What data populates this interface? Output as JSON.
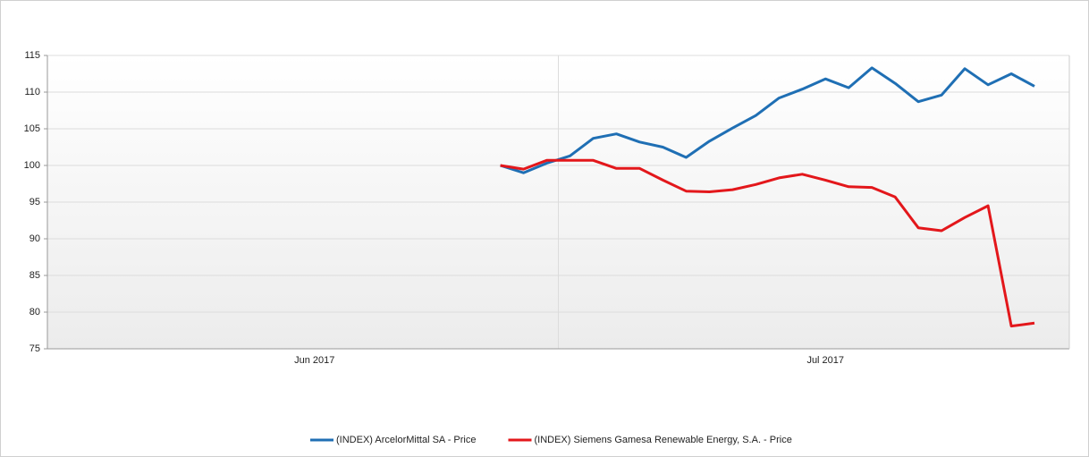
{
  "chart_data": {
    "type": "line",
    "x": [
      19.5,
      20.5,
      21.5,
      22.5,
      23.5,
      24.5,
      25.5,
      26.5,
      27.5,
      28.5,
      29.5,
      30.5,
      31.5,
      32.5,
      33.5,
      34.5,
      35.5,
      36.5,
      37.5,
      38.5,
      39.5,
      40.5,
      41.5,
      42.5
    ],
    "series": [
      {
        "name": "(INDEX) ArcelorMittal SA - Price",
        "color": "#1f6fb4",
        "values": [
          100,
          99.0,
          100.3,
          101.3,
          103.7,
          104.3,
          103.2,
          102.5,
          101.1,
          103.3,
          105.1,
          106.8,
          109.2,
          110.4,
          111.8,
          110.6,
          113.3,
          111.2,
          108.7,
          109.6,
          113.2,
          111.0,
          112.5,
          110.8
        ]
      },
      {
        "name": "(INDEX) Siemens Gamesa Renewable Energy, S.A. - Price",
        "color": "#e3171b",
        "values": [
          100,
          99.5,
          100.7,
          100.7,
          100.7,
          99.6,
          99.6,
          98.0,
          96.5,
          96.4,
          96.7,
          97.4,
          98.3,
          98.8,
          98.0,
          97.1,
          97.0,
          95.7,
          91.5,
          91.1,
          92.9,
          94.5,
          78.1,
          78.5
        ]
      }
    ],
    "xlim": [
      0,
      44
    ],
    "xticks": [
      {
        "value": 11.5,
        "label": "Jun 2017"
      },
      {
        "value": 33.5,
        "label": "Jul 2017"
      }
    ],
    "xgrid_lines": [
      22
    ],
    "ylim": [
      75,
      115
    ],
    "yticks": [
      75,
      80,
      85,
      90,
      95,
      100,
      105,
      110,
      115
    ],
    "grid": true,
    "legend": "bottom"
  }
}
